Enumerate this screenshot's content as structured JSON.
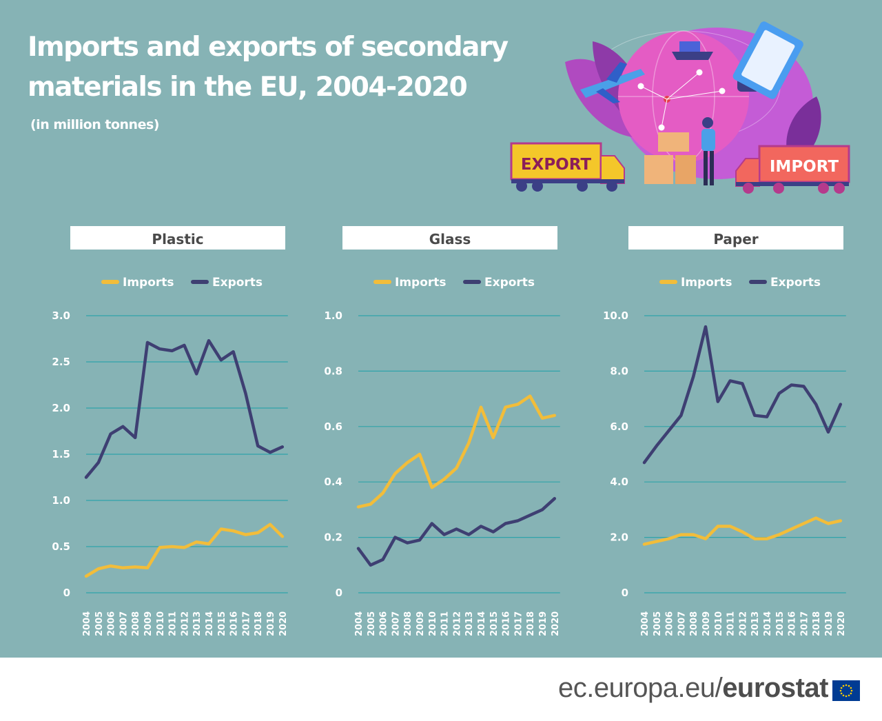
{
  "title": "Imports and exports of secondary materials in the EU, 2004-2020",
  "subtitle": "(in million tonnes)",
  "illustration": {
    "export_label": "EXPORT",
    "import_label": "IMPORT"
  },
  "colors": {
    "background": "#86b3b5",
    "imports": "#f2bd3a",
    "exports": "#3e3f72",
    "grid": "#2fa3aa"
  },
  "chart_data": [
    {
      "type": "line",
      "title": "Plastic",
      "x": [
        2004,
        2005,
        2006,
        2007,
        2008,
        2009,
        2010,
        2011,
        2012,
        2013,
        2014,
        2015,
        2016,
        2017,
        2018,
        2019,
        2020
      ],
      "ylim": [
        0,
        3.0
      ],
      "yticks": [
        0,
        0.5,
        1.0,
        1.5,
        2.0,
        2.5,
        3.0
      ],
      "ytick_labels": [
        "0",
        "0.5",
        "1.0",
        "1.5",
        "2.0",
        "2.5",
        "3.0"
      ],
      "grid": true,
      "legend": "top",
      "series": [
        {
          "name": "Imports",
          "values": [
            0.18,
            0.26,
            0.29,
            0.27,
            0.28,
            0.27,
            0.49,
            0.5,
            0.49,
            0.55,
            0.53,
            0.69,
            0.67,
            0.63,
            0.65,
            0.74,
            0.61
          ]
        },
        {
          "name": "Exports",
          "values": [
            1.25,
            1.41,
            1.72,
            1.8,
            1.68,
            2.71,
            2.64,
            2.62,
            2.68,
            2.37,
            2.73,
            2.52,
            2.61,
            2.16,
            1.59,
            1.52,
            1.58
          ]
        }
      ]
    },
    {
      "type": "line",
      "title": "Glass",
      "x": [
        2004,
        2005,
        2006,
        2007,
        2008,
        2009,
        2010,
        2011,
        2012,
        2013,
        2014,
        2015,
        2016,
        2017,
        2018,
        2019,
        2020
      ],
      "ylim": [
        0,
        1.0
      ],
      "yticks": [
        0,
        0.2,
        0.4,
        0.6,
        0.8,
        1.0
      ],
      "ytick_labels": [
        "0",
        "0.2",
        "0.4",
        "0.6",
        "0.8",
        "1.0"
      ],
      "grid": true,
      "legend": "top",
      "series": [
        {
          "name": "Imports",
          "values": [
            0.31,
            0.32,
            0.36,
            0.43,
            0.47,
            0.5,
            0.38,
            0.41,
            0.45,
            0.54,
            0.67,
            0.56,
            0.67,
            0.68,
            0.71,
            0.63,
            0.64
          ]
        },
        {
          "name": "Exports",
          "values": [
            0.16,
            0.1,
            0.12,
            0.2,
            0.18,
            0.19,
            0.25,
            0.21,
            0.23,
            0.21,
            0.24,
            0.22,
            0.25,
            0.26,
            0.28,
            0.3,
            0.34
          ]
        }
      ]
    },
    {
      "type": "line",
      "title": "Paper",
      "x": [
        2004,
        2005,
        2006,
        2007,
        2008,
        2009,
        2010,
        2011,
        2012,
        2013,
        2014,
        2015,
        2016,
        2017,
        2018,
        2019,
        2020
      ],
      "ylim": [
        0,
        10.0
      ],
      "yticks": [
        0,
        2.0,
        4.0,
        6.0,
        8.0,
        10.0
      ],
      "ytick_labels": [
        "0",
        "2.0",
        "4.0",
        "6.0",
        "8.0",
        "10.0"
      ],
      "grid": true,
      "legend": "top",
      "series": [
        {
          "name": "Imports",
          "values": [
            1.75,
            1.85,
            1.95,
            2.1,
            2.1,
            1.95,
            2.4,
            2.4,
            2.2,
            1.95,
            1.95,
            2.1,
            2.3,
            2.5,
            2.7,
            2.5,
            2.6
          ]
        },
        {
          "name": "Exports",
          "values": [
            4.7,
            5.3,
            5.85,
            6.4,
            7.8,
            9.6,
            6.9,
            7.65,
            7.55,
            6.4,
            6.35,
            7.2,
            7.5,
            7.45,
            6.8,
            5.8,
            6.8
          ]
        }
      ]
    }
  ],
  "footer": {
    "domain": "ec.europa.eu/",
    "brand": "eurostat"
  }
}
